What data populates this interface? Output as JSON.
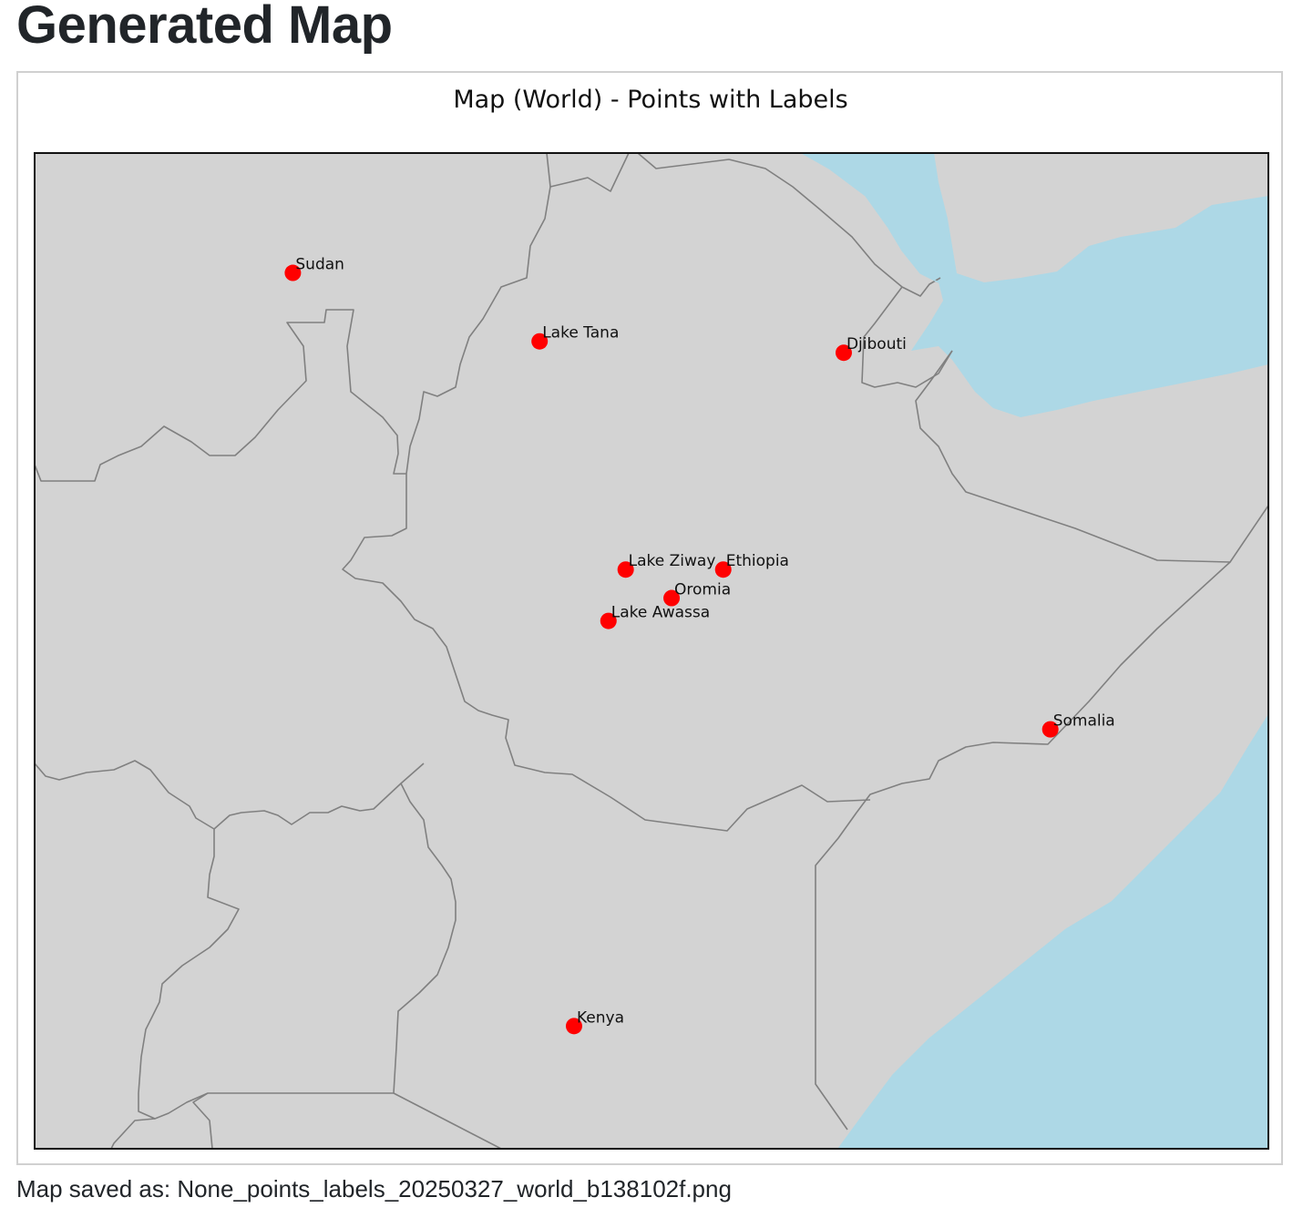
{
  "page": {
    "title": "Generated Map",
    "caption": "Map saved as: None_points_labels_20250327_world_b138102f.png"
  },
  "map": {
    "title": "Map (World) - Points with Labels",
    "colors": {
      "land": "#d3d3d3",
      "water": "#add8e6",
      "border": "#808080",
      "frame": "#111111",
      "point": "#ff0000"
    },
    "points": [
      {
        "name": "Sudan",
        "lon": 33.0,
        "lat": 13.2
      },
      {
        "name": "Lake Tana",
        "lon": 37.3,
        "lat": 12.0
      },
      {
        "name": "Djibouti",
        "lon": 42.6,
        "lat": 11.8
      },
      {
        "name": "Ethiopia",
        "lon": 40.5,
        "lat": 8.0
      },
      {
        "name": "Lake Ziway",
        "lon": 38.8,
        "lat": 8.0
      },
      {
        "name": "Oromia",
        "lon": 39.6,
        "lat": 7.5
      },
      {
        "name": "Lake Awassa",
        "lon": 38.5,
        "lat": 7.1
      },
      {
        "name": "Somalia",
        "lon": 46.2,
        "lat": 5.2
      },
      {
        "name": "Kenya",
        "lon": 37.9,
        "lat": 0.0
      }
    ]
  }
}
